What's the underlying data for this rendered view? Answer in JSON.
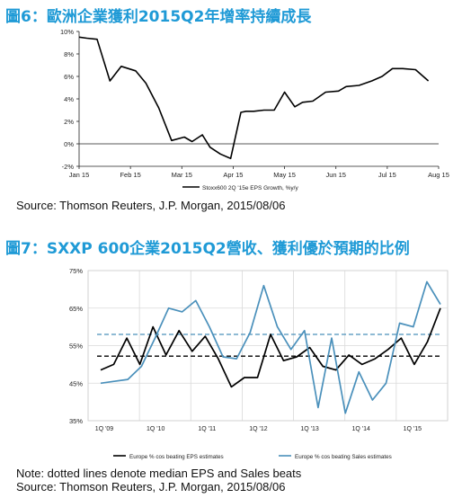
{
  "figure6": {
    "title": "圖6：歐洲企業獲利2015Q2年增率持續成長",
    "source": "Source: Thomson Reuters, J.P. Morgan, 2015/08/06"
  },
  "figure7": {
    "title": "圖7：SXXP 600企業2015Q2營收、獲利優於預期的比例",
    "note": "Note: dotted lines denote median EPS and Sales beats",
    "source": "Source: Thomson Reuters, J.P. Morgan, 2015/08/06"
  },
  "chart_data": [
    {
      "type": "line",
      "title": "",
      "xlabel": "",
      "ylabel": "",
      "ylim": [
        -2,
        10
      ],
      "yticks": [
        "10%",
        "8%",
        "6%",
        "4%",
        "2%",
        "0%",
        "-2%"
      ],
      "xticks": [
        "Jan 15",
        "Feb 15",
        "Mar 15",
        "Apr 15",
        "May 15",
        "Jun 15",
        "Jul 15",
        "Aug 15"
      ],
      "grid": false,
      "legend_position": "bottom-right",
      "series": [
        {
          "name": "Stoxx600 2Q '15e EPS Growth, %y/y",
          "color": "#000000",
          "x": [
            0,
            0.15,
            0.35,
            0.6,
            0.82,
            1.1,
            1.3,
            1.55,
            1.8,
            2.05,
            2.2,
            2.4,
            2.55,
            2.75,
            2.95,
            3.15,
            3.25,
            3.4,
            3.6,
            3.8,
            4.0,
            4.2,
            4.35,
            4.55,
            4.8,
            5.05,
            5.2,
            5.45,
            5.7,
            5.9,
            6.1,
            6.3,
            6.55,
            6.8
          ],
          "values": [
            9.5,
            9.4,
            9.3,
            5.6,
            6.9,
            6.5,
            5.4,
            3.2,
            0.3,
            0.6,
            0.2,
            0.8,
            -0.3,
            -0.9,
            -1.3,
            2.8,
            2.9,
            2.9,
            3.0,
            3.0,
            4.6,
            3.3,
            3.7,
            3.8,
            4.6,
            4.7,
            5.1,
            5.2,
            5.6,
            6.0,
            6.7,
            6.7,
            6.6,
            5.6
          ]
        }
      ]
    },
    {
      "type": "line",
      "title": "",
      "xlabel": "",
      "ylabel": "",
      "ylim": [
        35,
        75
      ],
      "yticks": [
        "75%",
        "65%",
        "55%",
        "45%",
        "35%"
      ],
      "xticks": [
        "1Q '09",
        "1Q '10",
        "1Q '11",
        "1Q '12",
        "1Q '13",
        "1Q '14",
        "1Q '15"
      ],
      "grid": true,
      "legend_position": "bottom",
      "series": [
        {
          "name": "Europe % cos beating EPS estimates",
          "color": "#000000",
          "values": [
            48.5,
            50,
            57,
            50,
            60,
            52.5,
            59,
            53.5,
            57.5,
            51.5,
            44,
            46.5,
            46.5,
            58,
            51,
            52,
            54.5,
            49.5,
            48.5,
            52.5,
            50,
            51.5,
            54,
            57,
            50,
            56,
            65
          ]
        },
        {
          "name": "Europe % cos beating Sales estimates",
          "color": "#4a90bb",
          "values": [
            45,
            45.5,
            46,
            49.5,
            57,
            65,
            64,
            67,
            60,
            52,
            51.5,
            58.5,
            71,
            60,
            54,
            59,
            38.5,
            57,
            37,
            48,
            40.5,
            45,
            61,
            60,
            72,
            66
          ]
        }
      ],
      "reference_lines": [
        {
          "name": "median EPS beats",
          "value": 52.2,
          "color": "#000000"
        },
        {
          "name": "median Sales beats",
          "value": 58,
          "color": "#4a90bb"
        }
      ]
    }
  ]
}
